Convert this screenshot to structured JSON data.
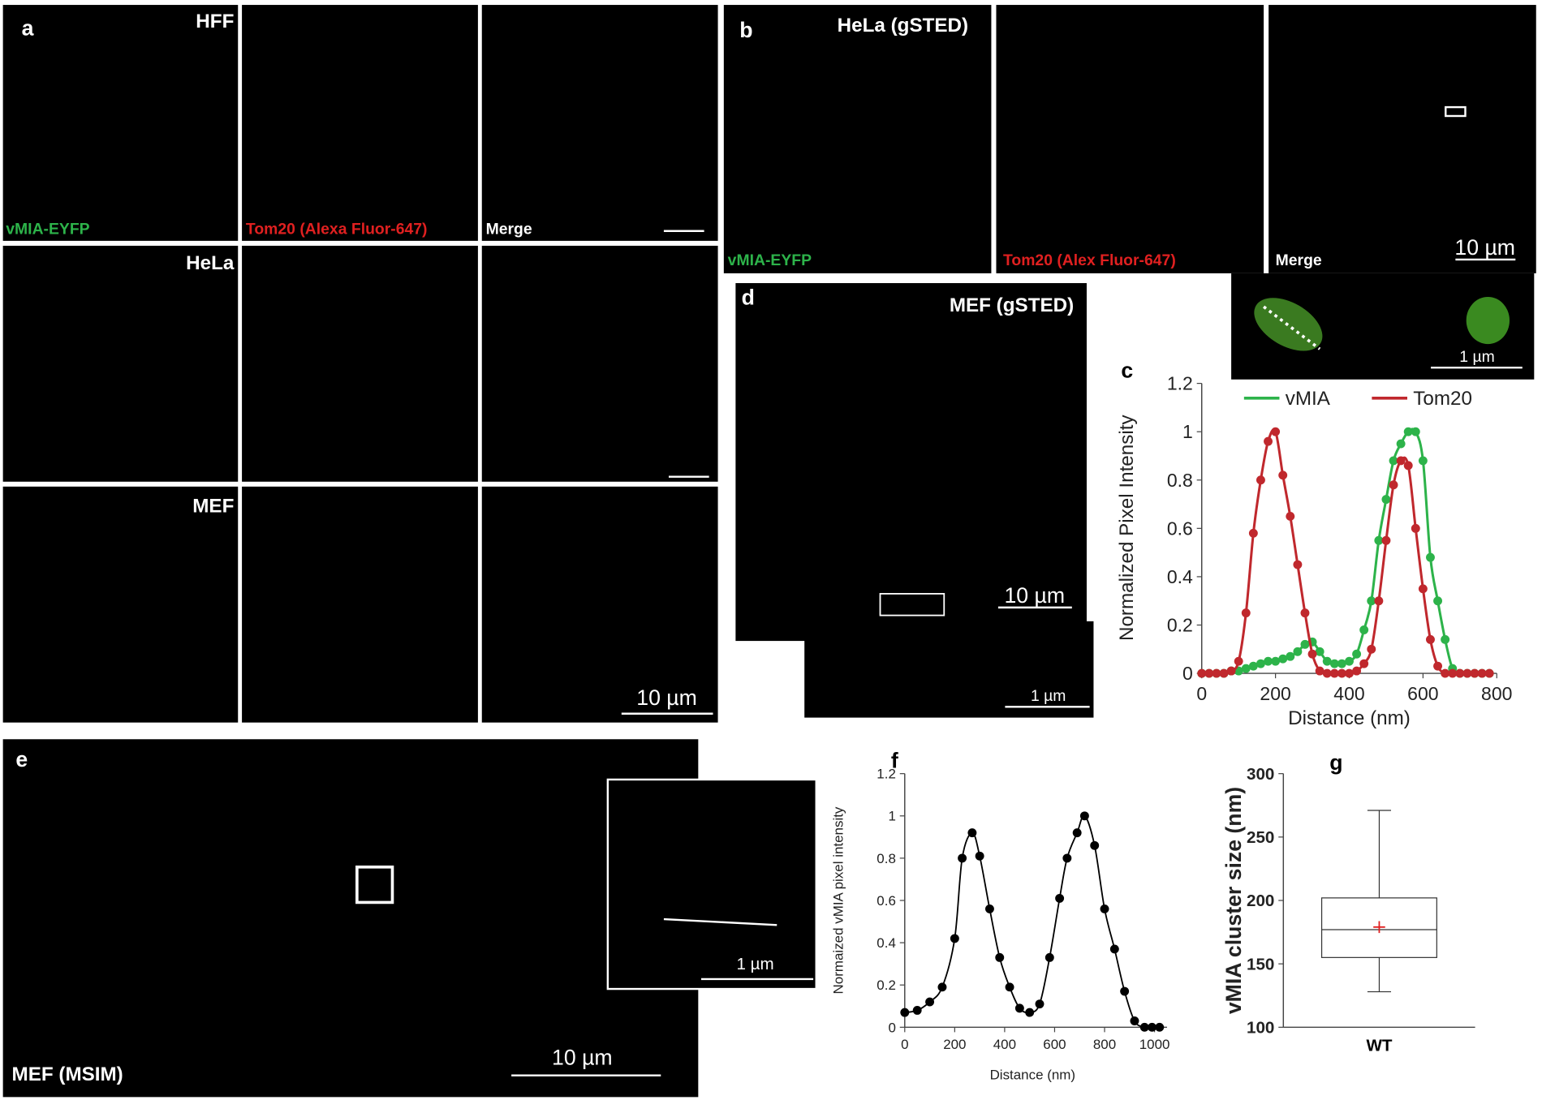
{
  "panels": {
    "a": {
      "label": "a",
      "rows": [
        "HFF",
        "HeLa",
        "MEF"
      ],
      "channels": [
        "vMIA-EYFP",
        "Tom20 (Alexa Fluor-647)",
        "Merge"
      ],
      "scale_bar": "10 µm"
    },
    "b": {
      "label": "b",
      "title": "HeLa (gSTED)",
      "channels": [
        "vMIA-EYFP",
        "Tom20 (Alex Fluor-647)",
        "Merge"
      ],
      "scale_bar": "10 µm",
      "inset_scale_bar": "1 µm"
    },
    "d": {
      "label": "d",
      "title": "MEF (gSTED)",
      "scale_bar": "10 µm",
      "inset_scale_bar": "1 µm"
    },
    "e": {
      "label": "e",
      "title": "MEF (MSIM)",
      "scale_bar": "10 µm",
      "inset_scale_bar": "1 µm"
    }
  },
  "chart_data": [
    {
      "type": "line",
      "panel_label": "c",
      "x_label": "Distance (nm)",
      "y_label": "Normalized Pixel Intensity",
      "x": [
        0,
        20,
        40,
        60,
        80,
        100,
        120,
        140,
        160,
        180,
        200,
        220,
        240,
        260,
        280,
        300,
        320,
        340,
        360,
        380,
        400,
        420,
        440,
        460,
        480,
        500,
        520,
        540,
        560,
        580,
        600,
        620,
        640,
        660,
        680,
        700,
        720,
        740,
        760,
        780
      ],
      "series": [
        {
          "name": "vMIA",
          "color": "#2db34a",
          "values": [
            0,
            0,
            0,
            0,
            0.01,
            0.01,
            0.02,
            0.03,
            0.04,
            0.05,
            0.05,
            0.06,
            0.07,
            0.09,
            0.12,
            0.13,
            0.09,
            0.05,
            0.04,
            0.04,
            0.05,
            0.08,
            0.18,
            0.3,
            0.55,
            0.72,
            0.88,
            0.95,
            1,
            1,
            0.88,
            0.48,
            0.3,
            0.14,
            0.02,
            0,
            0,
            0,
            0,
            0
          ]
        },
        {
          "name": "Tom20",
          "color": "#c0282d",
          "values": [
            0,
            0,
            0,
            0,
            0.01,
            0.05,
            0.25,
            0.58,
            0.8,
            0.96,
            1,
            0.82,
            0.65,
            0.45,
            0.25,
            0.08,
            0.01,
            0,
            0,
            0,
            0,
            0.01,
            0.04,
            0.1,
            0.3,
            0.55,
            0.78,
            0.88,
            0.86,
            0.6,
            0.35,
            0.14,
            0.03,
            0,
            0,
            0,
            0,
            0,
            0,
            0
          ]
        }
      ],
      "xlim": [
        0,
        800
      ],
      "xticks": [
        0,
        200,
        400,
        600,
        800
      ],
      "ylim": [
        0,
        1.2
      ],
      "yticks": [
        0,
        0.2,
        0.4,
        0.6,
        0.8,
        1,
        1.2
      ]
    },
    {
      "type": "line",
      "panel_label": "f",
      "x_label": "Distance (nm)",
      "y_label": "Normaized vMIA pixel intensity",
      "color": "#000000",
      "x": [
        0,
        50,
        100,
        150,
        200,
        230,
        270,
        300,
        340,
        380,
        420,
        460,
        500,
        540,
        580,
        620,
        650,
        690,
        720,
        760,
        800,
        840,
        880,
        920,
        960,
        990,
        1020
      ],
      "values": [
        0.07,
        0.08,
        0.12,
        0.19,
        0.42,
        0.8,
        0.92,
        0.81,
        0.56,
        0.33,
        0.19,
        0.09,
        0.07,
        0.11,
        0.33,
        0.61,
        0.8,
        0.92,
        1,
        0.86,
        0.56,
        0.37,
        0.17,
        0.03,
        0,
        0,
        0
      ],
      "xlim": [
        0,
        1050
      ],
      "xticks": [
        0,
        200,
        400,
        600,
        800,
        1000
      ],
      "ylim": [
        0,
        1.2
      ],
      "yticks": [
        0,
        0.2,
        0.4,
        0.6,
        0.8,
        1,
        1.2
      ]
    },
    {
      "type": "box",
      "panel_label": "g",
      "y_label": "vMIA cluster size (nm)",
      "categories": [
        "WT"
      ],
      "min": [
        128
      ],
      "q1": [
        155
      ],
      "median": [
        177
      ],
      "q3": [
        202
      ],
      "max": [
        271
      ],
      "mean": [
        179
      ],
      "mean_color": "#e02020",
      "ylim": [
        100,
        300
      ],
      "yticks": [
        100,
        150,
        200,
        250,
        300
      ]
    }
  ]
}
